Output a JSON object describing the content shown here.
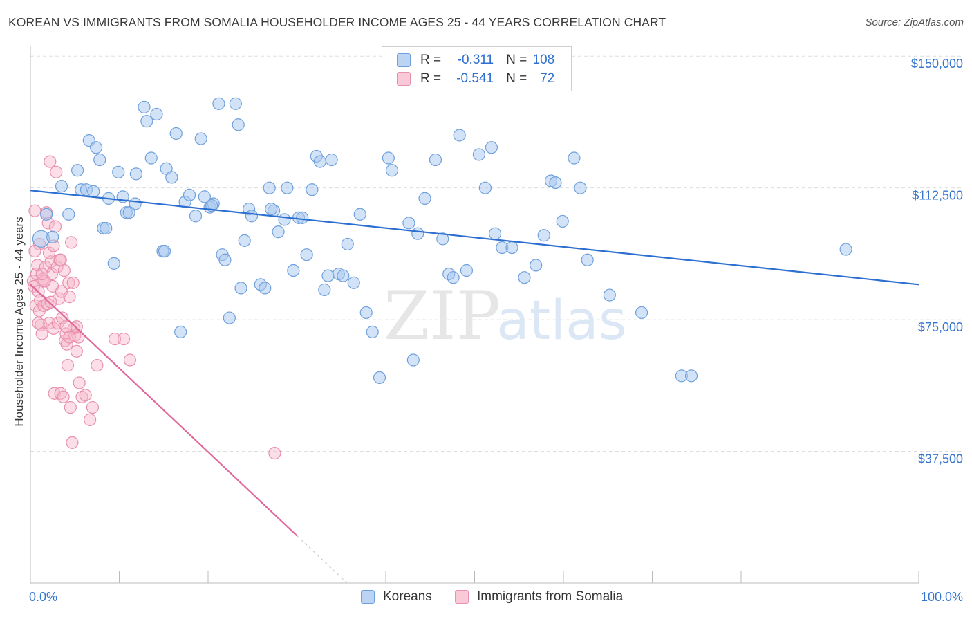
{
  "header": {
    "title": "KOREAN VS IMMIGRANTS FROM SOMALIA HOUSEHOLDER INCOME AGES 25 - 44 YEARS CORRELATION CHART",
    "source": "Source: ZipAtlas.com"
  },
  "watermark": {
    "zip": "ZIP",
    "atlas": "atlas"
  },
  "stats_legend": {
    "rows": [
      {
        "r_label": "R =",
        "r_value": "-0.311",
        "n_label": "N =",
        "n_value": "108"
      },
      {
        "r_label": "R =",
        "r_value": "-0.541",
        "n_label": "N =",
        "n_value": "72"
      }
    ]
  },
  "bottom_legend": {
    "koreans": "Koreans",
    "somalia": "Immigrants from Somalia"
  },
  "colors": {
    "koreans_fill": "#a8c8f0",
    "koreans_stroke": "#6fa0dc",
    "koreans_line": "#2d6fd1",
    "somalia_fill": "#f6b6ca",
    "somalia_stroke": "#e890ad",
    "somalia_line": "#e0679a",
    "tick_label": "#3575d0",
    "grid": "#dedede"
  },
  "chart_data": {
    "type": "scatter",
    "title": "KOREAN VS IMMIGRANTS FROM SOMALIA HOUSEHOLDER INCOME AGES 25 - 44 YEARS CORRELATION CHART",
    "xlabel": "",
    "ylabel": "Householder Income Ages 25 - 44 years",
    "xlim": [
      0,
      100
    ],
    "ylim": [
      0,
      153000
    ],
    "x_tick_labels": [
      "0.0%",
      "100.0%"
    ],
    "y_ticks": [
      37500,
      75000,
      112500,
      150000
    ],
    "y_tick_labels": [
      "$37,500",
      "$75,000",
      "$112,500",
      "$150,000"
    ],
    "grid": true,
    "legend_position": "top-center",
    "series": [
      {
        "name": "Koreans",
        "r": -0.311,
        "n": 108,
        "trend": {
          "x": [
            0,
            100
          ],
          "y": [
            111800,
            85000
          ]
        },
        "points": [
          [
            1.2,
            98
          ],
          [
            1.8,
            105
          ],
          [
            2.5,
            98.5
          ],
          [
            3.5,
            113
          ],
          [
            4.3,
            105
          ],
          [
            5.3,
            117.5
          ],
          [
            5.7,
            112
          ],
          [
            6.3,
            112
          ],
          [
            6.6,
            126
          ],
          [
            7.1,
            111.5
          ],
          [
            7.4,
            124
          ],
          [
            7.8,
            120.5
          ],
          [
            8.2,
            101
          ],
          [
            8.8,
            109.5
          ],
          [
            9.4,
            91
          ],
          [
            9.9,
            117
          ],
          [
            10.4,
            110
          ],
          [
            10.8,
            105.5
          ],
          [
            11.8,
            108
          ],
          [
            11.9,
            116.5
          ],
          [
            12.8,
            135.5
          ],
          [
            13.1,
            131.5
          ],
          [
            13.6,
            121
          ],
          [
            14.2,
            133.5
          ],
          [
            14.9,
            94.5
          ],
          [
            15.3,
            118
          ],
          [
            15.9,
            115.5
          ],
          [
            16.4,
            128
          ],
          [
            16.9,
            71.5
          ],
          [
            17.4,
            108.5
          ],
          [
            17.9,
            110.5
          ],
          [
            18.6,
            104.5
          ],
          [
            19.2,
            126.5
          ],
          [
            19.6,
            110
          ],
          [
            20.2,
            107
          ],
          [
            20.6,
            108
          ],
          [
            21.2,
            136.5
          ],
          [
            21.6,
            93.5
          ],
          [
            21.9,
            92
          ],
          [
            22.4,
            75.5
          ],
          [
            23.1,
            136.5
          ],
          [
            23.4,
            130.5
          ],
          [
            23.7,
            84
          ],
          [
            24.1,
            97.5
          ],
          [
            24.6,
            106.5
          ],
          [
            24.9,
            104.5
          ],
          [
            25.9,
            85
          ],
          [
            26.4,
            84
          ],
          [
            26.9,
            112.5
          ],
          [
            27.4,
            106
          ],
          [
            27.9,
            100
          ],
          [
            28.6,
            103.5
          ],
          [
            28.9,
            112.5
          ],
          [
            29.6,
            89
          ],
          [
            30.2,
            104
          ],
          [
            30.6,
            104
          ],
          [
            31.1,
            93.5
          ],
          [
            31.7,
            112
          ],
          [
            32.2,
            121.5
          ],
          [
            32.6,
            120
          ],
          [
            33.1,
            83.5
          ],
          [
            33.5,
            87.5
          ],
          [
            33.9,
            120.5
          ],
          [
            34.7,
            88
          ],
          [
            35.2,
            87.5
          ],
          [
            35.7,
            96.5
          ],
          [
            36.4,
            85.5
          ],
          [
            37.1,
            105
          ],
          [
            37.8,
            77
          ],
          [
            38.5,
            71.5
          ],
          [
            39.3,
            58.5
          ],
          [
            40.3,
            121
          ],
          [
            40.7,
            117.5
          ],
          [
            42.6,
            102.5
          ],
          [
            43.1,
            63.5
          ],
          [
            43.6,
            99.5
          ],
          [
            44.4,
            109.5
          ],
          [
            45.6,
            120.5
          ],
          [
            46.4,
            98
          ],
          [
            47.1,
            88
          ],
          [
            47.6,
            87
          ],
          [
            48.3,
            127.5
          ],
          [
            49.1,
            89
          ],
          [
            50.5,
            122
          ],
          [
            51.2,
            112.5
          ],
          [
            51.9,
            124
          ],
          [
            52.3,
            99.5
          ],
          [
            53.1,
            95.5
          ],
          [
            54.2,
            95.5
          ],
          [
            55.6,
            87
          ],
          [
            56.9,
            90.5
          ],
          [
            57.8,
            99
          ],
          [
            58.6,
            114.5
          ],
          [
            59.1,
            114
          ],
          [
            59.9,
            103
          ],
          [
            61.2,
            121
          ],
          [
            61.9,
            112.5
          ],
          [
            62.7,
            92
          ],
          [
            65.2,
            82
          ],
          [
            68.8,
            77
          ],
          [
            73.3,
            59
          ],
          [
            74.4,
            59
          ],
          [
            91.8,
            95
          ],
          [
            8.5,
            101
          ],
          [
            15.1,
            94.5
          ],
          [
            11.1,
            105.5
          ],
          [
            20.4,
            107.5
          ],
          [
            27.1,
            106.5
          ]
        ]
      },
      {
        "name": "Immigrants from Somalia",
        "r": -0.541,
        "n": 72,
        "trend": {
          "x": [
            0,
            30
          ],
          "y": [
            85000,
            13500
          ]
        },
        "points": [
          [
            0.3,
            86
          ],
          [
            0.4,
            84.5
          ],
          [
            0.5,
            106
          ],
          [
            0.6,
            79
          ],
          [
            0.7,
            88
          ],
          [
            0.8,
            90.5
          ],
          [
            0.9,
            83
          ],
          [
            1.0,
            77.5
          ],
          [
            1.1,
            80.5
          ],
          [
            1.2,
            73.5
          ],
          [
            1.3,
            71
          ],
          [
            1.4,
            86.5
          ],
          [
            1.5,
            79
          ],
          [
            1.6,
            86
          ],
          [
            1.7,
            90
          ],
          [
            1.8,
            105.5
          ],
          [
            1.9,
            79.5
          ],
          [
            2.0,
            102.5
          ],
          [
            2.1,
            74
          ],
          [
            2.2,
            120
          ],
          [
            2.3,
            91.5
          ],
          [
            2.4,
            88
          ],
          [
            2.5,
            84.5
          ],
          [
            2.6,
            72.5
          ],
          [
            2.7,
            54
          ],
          [
            2.8,
            101.5
          ],
          [
            2.9,
            117
          ],
          [
            3.0,
            90
          ],
          [
            3.1,
            74
          ],
          [
            3.2,
            81
          ],
          [
            3.3,
            92
          ],
          [
            3.4,
            54
          ],
          [
            3.5,
            83
          ],
          [
            3.6,
            75.5
          ],
          [
            3.7,
            53
          ],
          [
            3.8,
            89
          ],
          [
            3.9,
            69
          ],
          [
            4.0,
            71
          ],
          [
            4.1,
            68
          ],
          [
            4.2,
            62
          ],
          [
            4.3,
            85.5
          ],
          [
            4.4,
            81.5
          ],
          [
            4.5,
            50
          ],
          [
            4.6,
            97
          ],
          [
            4.7,
            40
          ],
          [
            4.8,
            85.5
          ],
          [
            4.9,
            72.5
          ],
          [
            5.0,
            70.5
          ],
          [
            5.2,
            66
          ],
          [
            5.4,
            70
          ],
          [
            5.5,
            57
          ],
          [
            5.8,
            53
          ],
          [
            6.2,
            53.5
          ],
          [
            6.7,
            46.5
          ],
          [
            7.0,
            50
          ],
          [
            7.5,
            62
          ],
          [
            9.5,
            69.5
          ],
          [
            10.5,
            69.5
          ],
          [
            11.2,
            63.5
          ],
          [
            27.5,
            37
          ],
          [
            1.0,
            96.5
          ],
          [
            1.6,
            86
          ],
          [
            2.1,
            94
          ],
          [
            2.6,
            96
          ],
          [
            0.5,
            94.5
          ],
          [
            1.3,
            88
          ],
          [
            3.4,
            92
          ],
          [
            4.0,
            73
          ],
          [
            4.4,
            70
          ],
          [
            5.2,
            73
          ],
          [
            0.9,
            74
          ],
          [
            2.3,
            80
          ]
        ]
      }
    ]
  }
}
